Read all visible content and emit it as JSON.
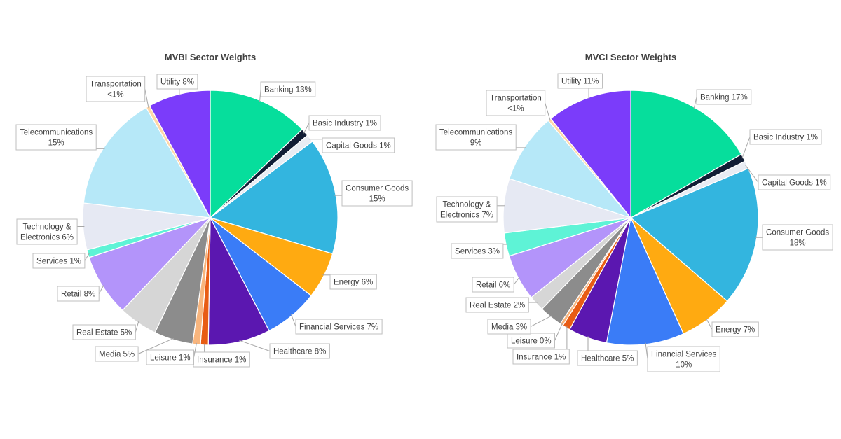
{
  "chart_data": [
    {
      "type": "pie",
      "title": "MVBI Sector Weights",
      "slices": [
        {
          "name": "Banking",
          "value": 13,
          "label": [
            "Banking 13%"
          ],
          "color": "#06DE9C"
        },
        {
          "name": "Basic Industry",
          "value": 1,
          "label": [
            "Basic Industry 1%"
          ],
          "color": "#111D35"
        },
        {
          "name": "Capital Goods",
          "value": 1,
          "label": [
            "Capital Goods 1%"
          ],
          "color": "#E8ECF3"
        },
        {
          "name": "Consumer Goods",
          "value": 15,
          "label": [
            "Consumer Goods",
            "15%"
          ],
          "color": "#33B5DF"
        },
        {
          "name": "Energy",
          "value": 6,
          "label": [
            "Energy 6%"
          ],
          "color": "#FFAA11"
        },
        {
          "name": "Financial Services",
          "value": 7,
          "label": [
            "Financial Services 7%"
          ],
          "color": "#3A7CF7"
        },
        {
          "name": "Healthcare",
          "value": 8,
          "label": [
            "Healthcare 8%"
          ],
          "color": "#5B17B0"
        },
        {
          "name": "Insurance",
          "value": 1,
          "label": [
            "Insurance 1%"
          ],
          "color": "#E85C14"
        },
        {
          "name": "Leisure",
          "value": 1,
          "label": [
            "Leisure 1%"
          ],
          "color": "#F8B57D"
        },
        {
          "name": "Media",
          "value": 5,
          "label": [
            "Media 5%"
          ],
          "color": "#8C8C8C"
        },
        {
          "name": "Real Estate",
          "value": 5,
          "label": [
            "Real Estate 5%"
          ],
          "color": "#D6D6D6"
        },
        {
          "name": "Retail",
          "value": 8,
          "label": [
            "Retail 8%"
          ],
          "color": "#B394FA"
        },
        {
          "name": "Services",
          "value": 1,
          "label": [
            "Services 1%"
          ],
          "color": "#5EF3D6"
        },
        {
          "name": "Technology & Electronics",
          "value": 6,
          "label": [
            "Technology &",
            "Electronics 6%"
          ],
          "color": "#E6E9F3"
        },
        {
          "name": "Telecommunications",
          "value": 15,
          "label": [
            "Telecommunications",
            "15%"
          ],
          "color": "#B6E8F8"
        },
        {
          "name": "Transportation",
          "value": 0.5,
          "label": [
            "Transportation",
            "<1%"
          ],
          "color": "#FFD7A8"
        },
        {
          "name": "Utility",
          "value": 8,
          "label": [
            "Utility 8%"
          ],
          "color": "#7B3CFA"
        }
      ]
    },
    {
      "type": "pie",
      "title": "MVCI Sector Weights",
      "slices": [
        {
          "name": "Banking",
          "value": 17,
          "label": [
            "Banking 17%"
          ],
          "color": "#06DE9C"
        },
        {
          "name": "Basic Industry",
          "value": 1,
          "label": [
            "Basic Industry 1%"
          ],
          "color": "#111D35"
        },
        {
          "name": "Capital Goods",
          "value": 1,
          "label": [
            "Capital Goods 1%"
          ],
          "color": "#E8ECF3"
        },
        {
          "name": "Consumer Goods",
          "value": 18,
          "label": [
            "Consumer Goods",
            "18%"
          ],
          "color": "#33B5DF"
        },
        {
          "name": "Energy",
          "value": 7,
          "label": [
            "Energy 7%"
          ],
          "color": "#FFAA11"
        },
        {
          "name": "Financial Services",
          "value": 10,
          "label": [
            "Financial Services",
            "10%"
          ],
          "color": "#3A7CF7"
        },
        {
          "name": "Healthcare",
          "value": 5,
          "label": [
            "Healthcare 5%"
          ],
          "color": "#5B17B0"
        },
        {
          "name": "Insurance",
          "value": 1,
          "label": [
            "Insurance 1%"
          ],
          "color": "#E85C14"
        },
        {
          "name": "Leisure",
          "value": 0.4,
          "label": [
            "Leisure 0%"
          ],
          "color": "#F8B57D"
        },
        {
          "name": "Media",
          "value": 3,
          "label": [
            "Media 3%"
          ],
          "color": "#8C8C8C"
        },
        {
          "name": "Real Estate",
          "value": 2,
          "label": [
            "Real Estate 2%"
          ],
          "color": "#D6D6D6"
        },
        {
          "name": "Retail",
          "value": 6,
          "label": [
            "Retail 6%"
          ],
          "color": "#B394FA"
        },
        {
          "name": "Services",
          "value": 3,
          "label": [
            "Services 3%"
          ],
          "color": "#5EF3D6"
        },
        {
          "name": "Technology & Electronics",
          "value": 7,
          "label": [
            "Technology &",
            "Electronics 7%"
          ],
          "color": "#E6E9F3"
        },
        {
          "name": "Telecommunications",
          "value": 9,
          "label": [
            "Telecommunications",
            "9%"
          ],
          "color": "#B6E8F8"
        },
        {
          "name": "Transportation",
          "value": 0.4,
          "label": [
            "Transportation",
            "<1%"
          ],
          "color": "#FFD7A8"
        },
        {
          "name": "Utility",
          "value": 11,
          "label": [
            "Utility 11%"
          ],
          "color": "#7B3CFA"
        }
      ]
    }
  ]
}
